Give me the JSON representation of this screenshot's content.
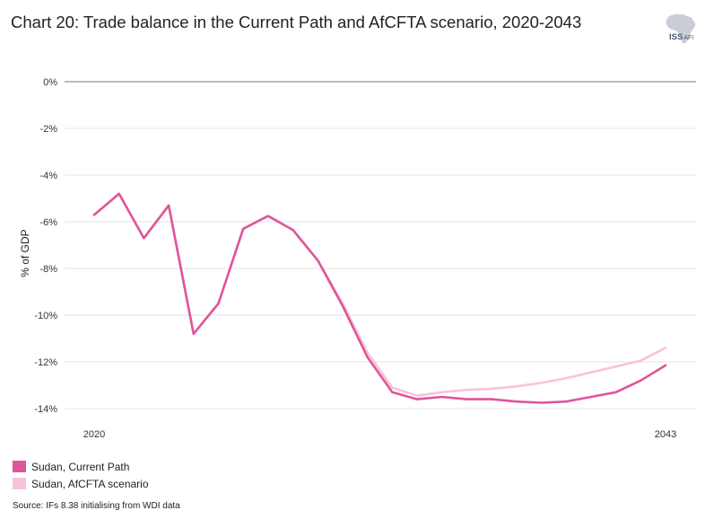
{
  "title": "Chart 20: Trade balance in the Current Path and AfCFTA scenario, 2020-2043",
  "logo": {
    "text": "ISS",
    "sub": "AFI"
  },
  "source": "Source: IFs 8.38 initialising from WDI data",
  "colors": {
    "current_path": "#e0549a",
    "afcfta": "#f6c3dc",
    "grid": "#e6e6e6",
    "zero_line": "#a6a6a6"
  },
  "chart_data": {
    "type": "line",
    "ylabel": "% of GDP",
    "xlabel": "",
    "ylim": [
      -14,
      0
    ],
    "yticks": [
      0,
      -2,
      -4,
      -6,
      -8,
      -10,
      -12,
      -14
    ],
    "ytick_labels": [
      "0%",
      "-2%",
      "-4%",
      "-6%",
      "-8%",
      "-10%",
      "-12%",
      "-14%"
    ],
    "x": [
      2020,
      2021,
      2022,
      2023,
      2024,
      2025,
      2026,
      2027,
      2028,
      2029,
      2030,
      2031,
      2032,
      2033,
      2034,
      2035,
      2036,
      2037,
      2038,
      2039,
      2040,
      2041,
      2042,
      2043
    ],
    "xtick_labels": [
      "2020",
      "2043"
    ],
    "grid": true,
    "legend_position": "bottom-left",
    "series": [
      {
        "name": "Sudan, Current Path",
        "values": [
          -5.7,
          -4.8,
          -6.7,
          -5.3,
          -10.8,
          -9.5,
          -6.3,
          -5.75,
          -6.35,
          -7.65,
          -9.6,
          -11.8,
          -13.3,
          -13.6,
          -13.5,
          -13.6,
          -13.6,
          -13.7,
          -13.75,
          -13.7,
          -13.5,
          -13.3,
          -12.8,
          -12.15
        ]
      },
      {
        "name": "Sudan, AfCFTA scenario",
        "values": [
          -5.7,
          -4.8,
          -6.7,
          -5.3,
          -10.8,
          -9.5,
          -6.3,
          -5.75,
          -6.35,
          -7.65,
          -9.5,
          -11.6,
          -13.1,
          -13.45,
          -13.3,
          -13.2,
          -13.15,
          -13.05,
          -12.9,
          -12.7,
          -12.45,
          -12.2,
          -11.95,
          -11.4
        ]
      }
    ]
  }
}
